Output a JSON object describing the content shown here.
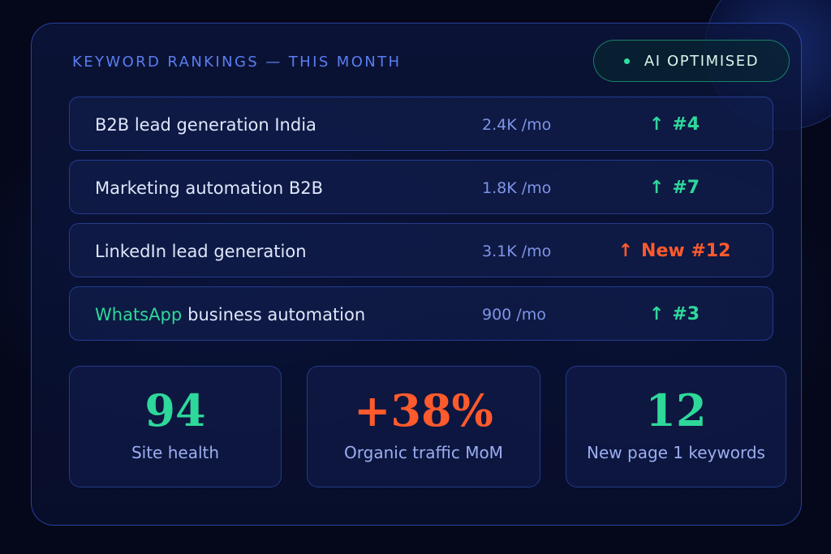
{
  "header": {
    "title": "KEYWORD RANKINGS — THIS MONTH",
    "badge": "AI OPTIMISED"
  },
  "keywords": [
    {
      "accent": "",
      "name": "B2B lead generation India",
      "volume": "2.4K /mo",
      "arrow": "↑",
      "rank": "#4"
    },
    {
      "accent": "",
      "name": "Marketing automation B2B",
      "volume": "1.8K /mo",
      "arrow": "↑",
      "rank": "#7"
    },
    {
      "accent": "",
      "name": "LinkedIn lead generation",
      "volume": "3.1K /mo",
      "arrow": "↑",
      "rank": "New #12"
    },
    {
      "accent": "WhatsApp",
      "name": "business automation",
      "volume": "900 /mo",
      "arrow": "↑",
      "rank": "#3"
    }
  ],
  "stats": [
    {
      "value": "94",
      "label": "Site health"
    },
    {
      "value": "+38%",
      "label": "Organic traffic MoM"
    },
    {
      "value": "12",
      "label": "New page 1 keywords"
    }
  ],
  "colors": {
    "accent_green": "#2ed89a",
    "accent_orange": "#ff5a2c",
    "title_blue": "#5a7df0"
  },
  "icons": {
    "rank_arrow": "arrow-up-icon",
    "badge": "status-dot-icon"
  }
}
